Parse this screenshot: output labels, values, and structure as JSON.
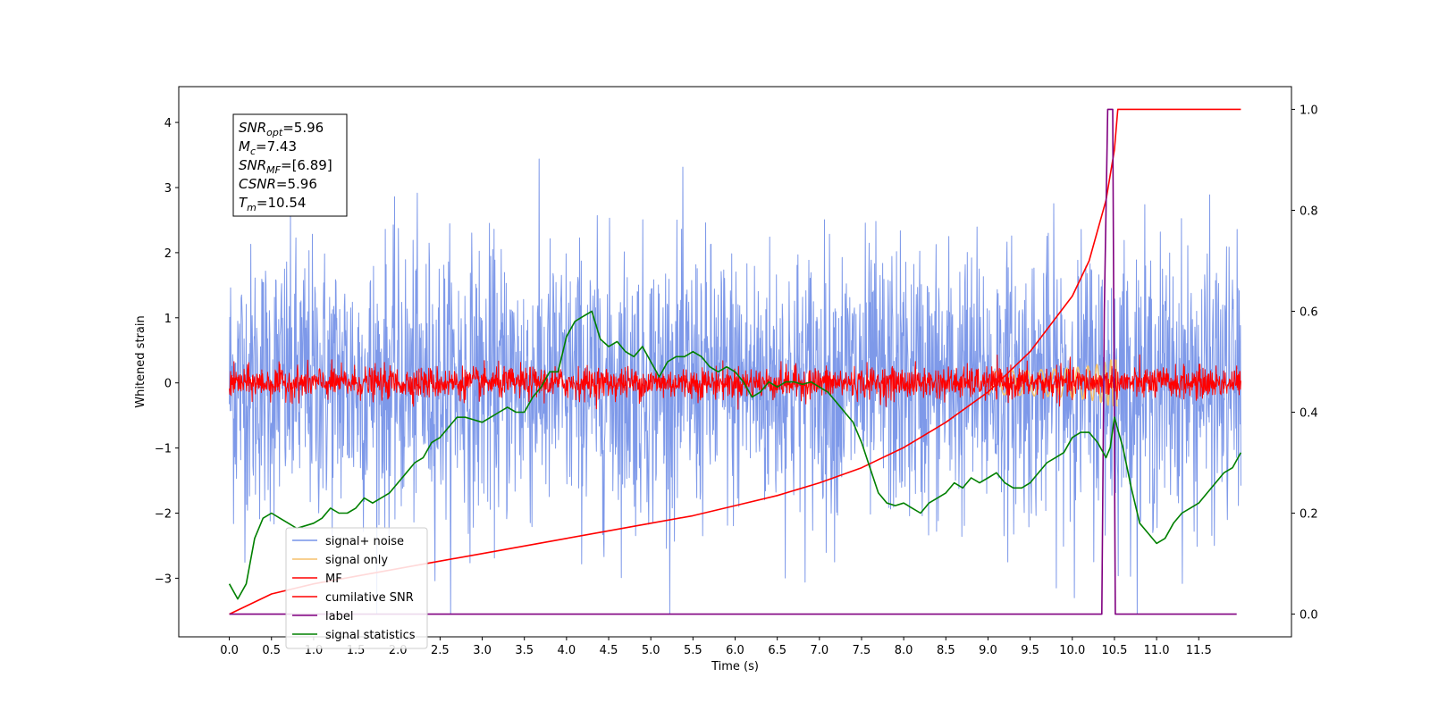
{
  "chart_data": {
    "type": "line",
    "xlabel": "Time (s)",
    "ylabel": "Whitened strain",
    "xlim": [
      -0.6,
      12.6
    ],
    "ylim": [
      -3.9,
      4.55
    ],
    "y2lim": [
      -0.045,
      1.045
    ],
    "xticks": [
      "0.0",
      "0.5",
      "1.0",
      "1.5",
      "2.0",
      "2.5",
      "3.0",
      "3.5",
      "4.0",
      "4.5",
      "5.0",
      "5.5",
      "6.0",
      "6.5",
      "7.0",
      "7.5",
      "8.0",
      "8.5",
      "9.0",
      "9.5",
      "10.0",
      "10.5",
      "11.0",
      "11.5"
    ],
    "yticks": [
      "−3",
      "−2",
      "−1",
      "0",
      "1",
      "2",
      "3",
      "4"
    ],
    "y2ticks": [
      "0.0",
      "0.2",
      "0.4",
      "0.6",
      "0.8",
      "1.0"
    ],
    "legend_position": "lower-left",
    "annotation": {
      "lines": [
        {
          "base": "SNR",
          "sub": "opt",
          "value": "=5.96"
        },
        {
          "base": "M",
          "sub": "c",
          "value": "=7.43"
        },
        {
          "base": "SNR",
          "sub": "MF",
          "value": "=[6.89]"
        },
        {
          "base": "CSNR",
          "sub": "",
          "value": "=5.96"
        },
        {
          "base": "T",
          "sub": "m",
          "value": "=10.54"
        }
      ]
    },
    "series": [
      {
        "name": "signal+ noise",
        "color": "#7793e8",
        "axis": "left",
        "style": "noise",
        "mean": 0.0,
        "std": 1.05,
        "x_range": [
          0.0,
          12.0
        ]
      },
      {
        "name": "signal only",
        "color": "#f5c16c",
        "axis": "left",
        "style": "chirp",
        "x_range": [
          9.0,
          10.54
        ],
        "peak_amplitude": 0.35
      },
      {
        "name": "MF",
        "color": "#ff0000",
        "axis": "left",
        "style": "noise",
        "mean": 0.0,
        "std": 0.12,
        "x_range": [
          0.0,
          12.0
        ]
      },
      {
        "name": "cumilative SNR",
        "color": "#ff0000",
        "axis": "right",
        "x": [
          0.0,
          0.5,
          1.0,
          1.5,
          2.0,
          2.5,
          3.0,
          3.5,
          4.0,
          4.5,
          5.0,
          5.5,
          6.0,
          6.5,
          7.0,
          7.5,
          8.0,
          8.5,
          9.0,
          9.5,
          10.0,
          10.2,
          10.4,
          10.5,
          10.54,
          12.0
        ],
        "y": [
          0.0,
          0.04,
          0.06,
          0.075,
          0.09,
          0.105,
          0.12,
          0.135,
          0.15,
          0.165,
          0.18,
          0.195,
          0.215,
          0.235,
          0.26,
          0.29,
          0.33,
          0.38,
          0.44,
          0.52,
          0.63,
          0.7,
          0.82,
          0.92,
          1.0,
          1.0
        ]
      },
      {
        "name": "label",
        "color": "#800080",
        "axis": "right",
        "x": [
          0.0,
          10.35,
          10.38,
          10.42,
          10.48,
          10.51,
          11.95
        ],
        "y": [
          0.0,
          0.0,
          0.6,
          1.0,
          1.0,
          0.0,
          0.0
        ]
      },
      {
        "name": "signal statistics",
        "color": "#008000",
        "axis": "right",
        "x": [
          0.0,
          0.1,
          0.2,
          0.3,
          0.4,
          0.5,
          0.6,
          0.7,
          0.8,
          0.9,
          1.0,
          1.1,
          1.2,
          1.3,
          1.4,
          1.5,
          1.6,
          1.7,
          1.8,
          1.9,
          2.0,
          2.1,
          2.2,
          2.3,
          2.4,
          2.5,
          2.6,
          2.7,
          2.8,
          2.9,
          3.0,
          3.1,
          3.2,
          3.3,
          3.4,
          3.5,
          3.6,
          3.7,
          3.8,
          3.9,
          4.0,
          4.1,
          4.2,
          4.3,
          4.4,
          4.5,
          4.6,
          4.7,
          4.8,
          4.9,
          5.0,
          5.1,
          5.2,
          5.3,
          5.4,
          5.5,
          5.6,
          5.7,
          5.8,
          5.9,
          6.0,
          6.1,
          6.2,
          6.3,
          6.4,
          6.5,
          6.6,
          6.7,
          6.8,
          6.9,
          7.0,
          7.1,
          7.2,
          7.3,
          7.4,
          7.5,
          7.6,
          7.7,
          7.8,
          7.9,
          8.0,
          8.1,
          8.2,
          8.3,
          8.4,
          8.5,
          8.6,
          8.7,
          8.8,
          8.9,
          9.0,
          9.1,
          9.2,
          9.3,
          9.4,
          9.5,
          9.6,
          9.7,
          9.8,
          9.9,
          10.0,
          10.1,
          10.2,
          10.3,
          10.4,
          10.45,
          10.5,
          10.6,
          10.7,
          10.8,
          10.9,
          11.0,
          11.1,
          11.2,
          11.3,
          11.4,
          11.5,
          11.6,
          11.7,
          11.8,
          11.9,
          12.0
        ],
        "y": [
          0.06,
          0.03,
          0.06,
          0.15,
          0.19,
          0.2,
          0.19,
          0.18,
          0.17,
          0.175,
          0.18,
          0.19,
          0.21,
          0.2,
          0.2,
          0.21,
          0.23,
          0.22,
          0.23,
          0.24,
          0.26,
          0.28,
          0.3,
          0.31,
          0.34,
          0.35,
          0.37,
          0.39,
          0.39,
          0.385,
          0.38,
          0.39,
          0.4,
          0.41,
          0.4,
          0.4,
          0.43,
          0.45,
          0.48,
          0.48,
          0.55,
          0.58,
          0.59,
          0.6,
          0.545,
          0.53,
          0.54,
          0.52,
          0.51,
          0.53,
          0.5,
          0.47,
          0.5,
          0.51,
          0.51,
          0.52,
          0.51,
          0.49,
          0.48,
          0.49,
          0.48,
          0.46,
          0.43,
          0.44,
          0.46,
          0.45,
          0.46,
          0.46,
          0.455,
          0.46,
          0.45,
          0.44,
          0.42,
          0.4,
          0.38,
          0.34,
          0.29,
          0.24,
          0.22,
          0.215,
          0.22,
          0.21,
          0.2,
          0.22,
          0.23,
          0.24,
          0.26,
          0.25,
          0.27,
          0.26,
          0.27,
          0.28,
          0.26,
          0.25,
          0.25,
          0.26,
          0.28,
          0.3,
          0.31,
          0.32,
          0.35,
          0.36,
          0.36,
          0.34,
          0.31,
          0.33,
          0.39,
          0.33,
          0.25,
          0.18,
          0.16,
          0.14,
          0.15,
          0.18,
          0.2,
          0.21,
          0.22,
          0.24,
          0.26,
          0.28,
          0.29,
          0.32
        ]
      }
    ]
  }
}
